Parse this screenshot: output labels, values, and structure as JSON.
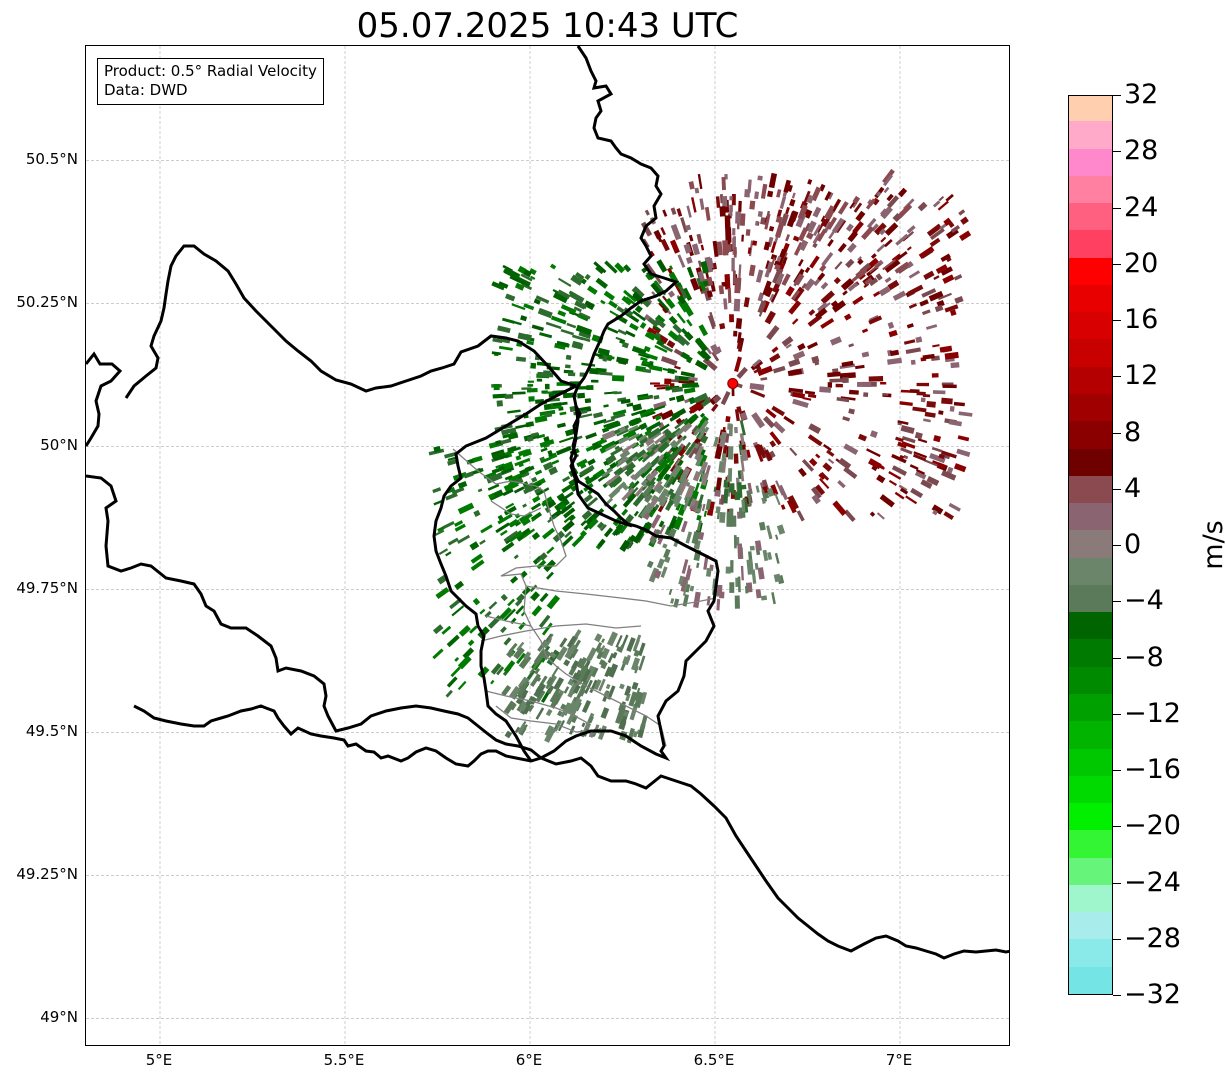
{
  "title": "05.07.2025 10:43 UTC",
  "info": {
    "product": "Product: 0.5° Radial Velocity",
    "data": "Data: DWD"
  },
  "map": {
    "lon_range": [
      4.8,
      7.3
    ],
    "lat_range": [
      48.95,
      50.7
    ],
    "lat_ticks": [
      {
        "value": 49.0,
        "label": "49°N"
      },
      {
        "value": 49.25,
        "label": "49.25°N"
      },
      {
        "value": 49.5,
        "label": "49.5°N"
      },
      {
        "value": 49.75,
        "label": "49.75°N"
      },
      {
        "value": 50.0,
        "label": "50°N"
      },
      {
        "value": 50.25,
        "label": "50.25°N"
      },
      {
        "value": 50.5,
        "label": "50.5°N"
      }
    ],
    "lon_ticks": [
      {
        "value": 5.0,
        "label": "5°E"
      },
      {
        "value": 5.5,
        "label": "5.5°E"
      },
      {
        "value": 6.0,
        "label": "6°E"
      },
      {
        "value": 6.5,
        "label": "6.5°E"
      },
      {
        "value": 7.0,
        "label": "7°E"
      }
    ],
    "radar_site": {
      "lon": 6.548,
      "lat": 50.11,
      "color": "#ff0000"
    },
    "grid_color": "#b0b0b0",
    "border_color": "#000000",
    "subdivision_color": "#808080"
  },
  "colorbar": {
    "unit": "m/s",
    "min": -32,
    "max": 32,
    "step": 2,
    "tick_labels": [
      "32",
      "28",
      "24",
      "20",
      "16",
      "12",
      "8",
      "4",
      "0",
      "−4",
      "−8",
      "−12",
      "−16",
      "−20",
      "−24",
      "−28",
      "−32"
    ],
    "tick_values": [
      32,
      28,
      24,
      20,
      16,
      12,
      8,
      4,
      0,
      -4,
      -8,
      -12,
      -16,
      -20,
      -24,
      -28,
      -32
    ],
    "colors_bottom_to_top": [
      "#74e4e4",
      "#8aeaea",
      "#a8ecec",
      "#9ff5cc",
      "#66f57a",
      "#33f533",
      "#00f000",
      "#00da00",
      "#00c800",
      "#00b400",
      "#00a000",
      "#008a00",
      "#007a00",
      "#006400",
      "#5a7a5a",
      "#6b856b",
      "#8a7a7a",
      "#8a6470",
      "#8a4a50",
      "#6e0000",
      "#8a0000",
      "#a00000",
      "#b40000",
      "#c80000",
      "#d80000",
      "#e80000",
      "#ff0000",
      "#ff4060",
      "#ff6080",
      "#ff80a0",
      "#ff88cc",
      "#ffaac8",
      "#ffcfb0"
    ]
  }
}
